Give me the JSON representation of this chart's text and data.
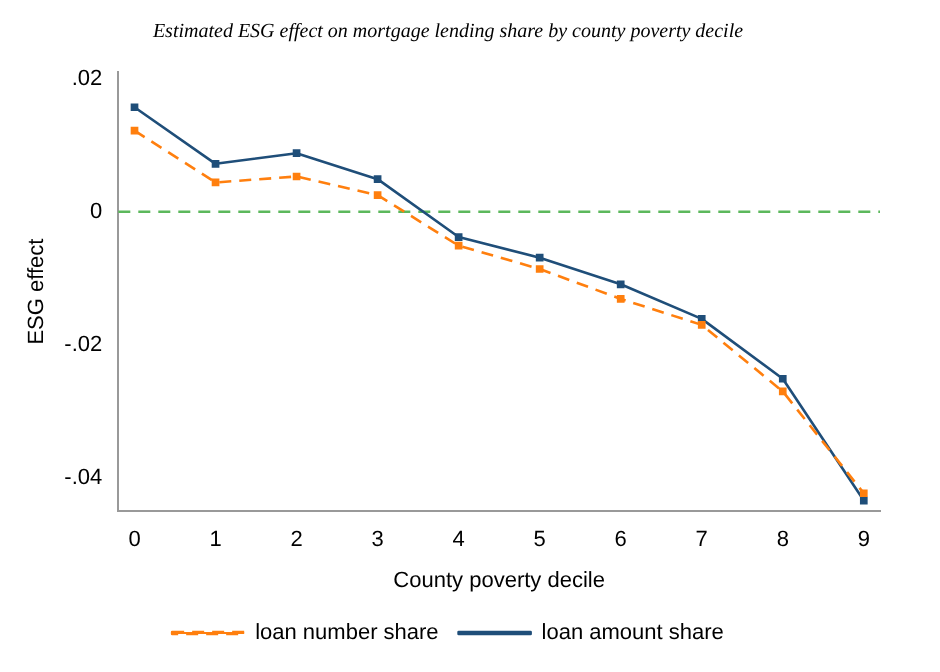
{
  "chart_data": {
    "type": "line",
    "title": "Estimated ESG effect on mortgage lending share by county poverty decile",
    "xlabel": "County poverty decile",
    "ylabel": "ESG effect",
    "x": [
      0,
      1,
      2,
      3,
      4,
      5,
      6,
      7,
      8,
      9
    ],
    "xlim": [
      -0.2,
      9.2
    ],
    "xticks": [
      0,
      1,
      2,
      3,
      4,
      5,
      6,
      7,
      8,
      9
    ],
    "ylim": [
      -0.045,
      0.021
    ],
    "yticks": [
      {
        "value": -0.04,
        "label": "-.04"
      },
      {
        "value": -0.02,
        "label": "-.02"
      },
      0,
      {
        "value": 0.02,
        "label": ".02"
      }
    ],
    "series": [
      {
        "name": "loan number share",
        "color": "#ff7f0e",
        "line_style": "dashed",
        "values": [
          0.0122,
          0.0044,
          0.0053,
          0.0025,
          -0.0051,
          -0.0086,
          -0.0131,
          -0.017,
          -0.027,
          -0.0423
        ]
      },
      {
        "name": "loan amount share",
        "color": "#1f4e79",
        "line_style": "solid",
        "values": [
          0.0157,
          0.0072,
          0.0088,
          0.0049,
          -0.0038,
          -0.0069,
          -0.0109,
          -0.0161,
          -0.0251,
          -0.0434
        ]
      }
    ],
    "ref_lines": [
      {
        "axis": "y",
        "value": 0,
        "color": "#5cb85c",
        "line_style": "dashed"
      }
    ],
    "marker": "square",
    "grid": false,
    "legend": "bottom"
  }
}
